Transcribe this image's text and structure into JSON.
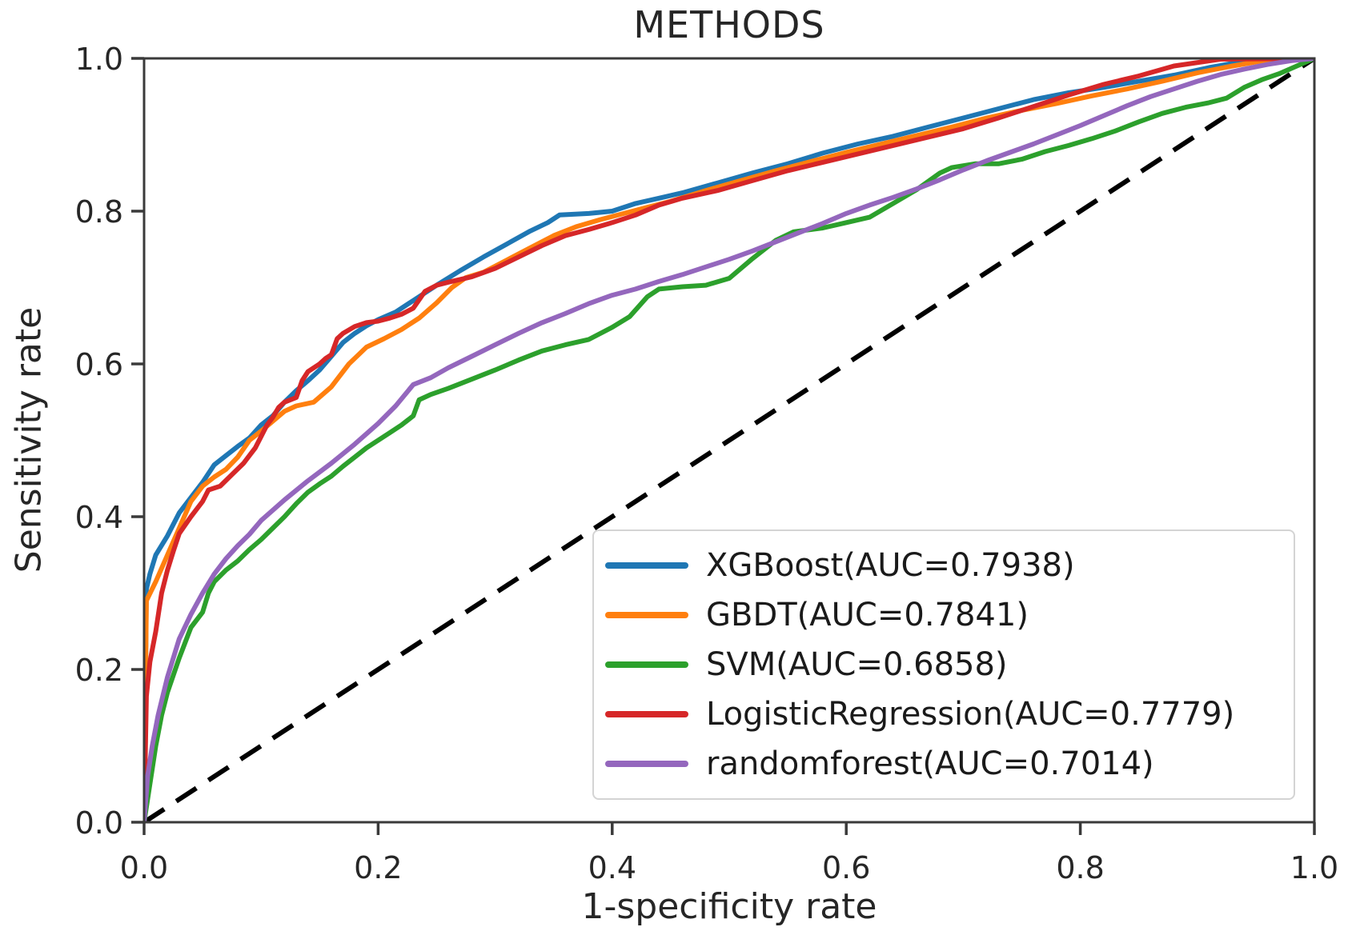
{
  "chart_data": {
    "type": "line",
    "subtype": "roc-curve",
    "title": "METHODS",
    "xlabel": "1-specificity rate",
    "ylabel": "Sensitivity rate",
    "xlim": [
      0.0,
      1.0
    ],
    "ylim": [
      0.0,
      1.0
    ],
    "xticks": [
      "0.0",
      "0.2",
      "0.4",
      "0.6",
      "0.8",
      "1.0"
    ],
    "yticks": [
      "0.0",
      "0.2",
      "0.4",
      "0.6",
      "0.8",
      "1.0"
    ],
    "grid": false,
    "legend_position": "lower right",
    "axis_color": "#3a3a3a",
    "text_color": "#262626",
    "reference_line": {
      "name": "chance-diagonal",
      "style": "dashed",
      "color": "#000000",
      "points": [
        [
          0,
          0
        ],
        [
          1,
          1
        ]
      ]
    },
    "series": [
      {
        "name": "XGBoost",
        "auc": 0.7938,
        "label": "XGBoost(AUC=0.7938)",
        "color": "#1f77b4",
        "points": [
          [
            0,
            0
          ],
          [
            0.002,
            0.305
          ],
          [
            0.005,
            0.325
          ],
          [
            0.01,
            0.35
          ],
          [
            0.02,
            0.375
          ],
          [
            0.03,
            0.405
          ],
          [
            0.04,
            0.425
          ],
          [
            0.05,
            0.445
          ],
          [
            0.06,
            0.468
          ],
          [
            0.07,
            0.48
          ],
          [
            0.08,
            0.492
          ],
          [
            0.09,
            0.503
          ],
          [
            0.1,
            0.52
          ],
          [
            0.11,
            0.532
          ],
          [
            0.12,
            0.55
          ],
          [
            0.13,
            0.565
          ],
          [
            0.14,
            0.578
          ],
          [
            0.15,
            0.592
          ],
          [
            0.16,
            0.61
          ],
          [
            0.17,
            0.628
          ],
          [
            0.18,
            0.64
          ],
          [
            0.19,
            0.65
          ],
          [
            0.2,
            0.658
          ],
          [
            0.215,
            0.668
          ],
          [
            0.23,
            0.683
          ],
          [
            0.25,
            0.703
          ],
          [
            0.27,
            0.722
          ],
          [
            0.29,
            0.74
          ],
          [
            0.31,
            0.757
          ],
          [
            0.33,
            0.774
          ],
          [
            0.345,
            0.785
          ],
          [
            0.355,
            0.795
          ],
          [
            0.38,
            0.797
          ],
          [
            0.4,
            0.8
          ],
          [
            0.42,
            0.81
          ],
          [
            0.44,
            0.817
          ],
          [
            0.46,
            0.824
          ],
          [
            0.49,
            0.837
          ],
          [
            0.52,
            0.85
          ],
          [
            0.55,
            0.862
          ],
          [
            0.58,
            0.876
          ],
          [
            0.61,
            0.888
          ],
          [
            0.64,
            0.898
          ],
          [
            0.67,
            0.91
          ],
          [
            0.7,
            0.922
          ],
          [
            0.73,
            0.934
          ],
          [
            0.76,
            0.946
          ],
          [
            0.79,
            0.955
          ],
          [
            0.82,
            0.962
          ],
          [
            0.85,
            0.97
          ],
          [
            0.88,
            0.978
          ],
          [
            0.91,
            0.988
          ],
          [
            0.95,
            0.999
          ],
          [
            1,
            1
          ]
        ]
      },
      {
        "name": "GBDT",
        "auc": 0.7841,
        "label": "GBDT(AUC=0.7841)",
        "color": "#ff7f0e",
        "points": [
          [
            0,
            0
          ],
          [
            0.002,
            0.29
          ],
          [
            0.01,
            0.315
          ],
          [
            0.02,
            0.35
          ],
          [
            0.03,
            0.385
          ],
          [
            0.04,
            0.42
          ],
          [
            0.05,
            0.44
          ],
          [
            0.06,
            0.452
          ],
          [
            0.07,
            0.462
          ],
          [
            0.08,
            0.478
          ],
          [
            0.09,
            0.5
          ],
          [
            0.1,
            0.512
          ],
          [
            0.11,
            0.525
          ],
          [
            0.12,
            0.538
          ],
          [
            0.13,
            0.545
          ],
          [
            0.145,
            0.55
          ],
          [
            0.16,
            0.57
          ],
          [
            0.175,
            0.6
          ],
          [
            0.19,
            0.622
          ],
          [
            0.205,
            0.633
          ],
          [
            0.22,
            0.645
          ],
          [
            0.235,
            0.66
          ],
          [
            0.25,
            0.68
          ],
          [
            0.263,
            0.7
          ],
          [
            0.275,
            0.713
          ],
          [
            0.29,
            0.72
          ],
          [
            0.31,
            0.736
          ],
          [
            0.33,
            0.752
          ],
          [
            0.35,
            0.768
          ],
          [
            0.37,
            0.78
          ],
          [
            0.39,
            0.789
          ],
          [
            0.41,
            0.797
          ],
          [
            0.43,
            0.805
          ],
          [
            0.45,
            0.813
          ],
          [
            0.48,
            0.827
          ],
          [
            0.51,
            0.84
          ],
          [
            0.54,
            0.853
          ],
          [
            0.57,
            0.865
          ],
          [
            0.6,
            0.877
          ],
          [
            0.63,
            0.888
          ],
          [
            0.66,
            0.899
          ],
          [
            0.69,
            0.91
          ],
          [
            0.72,
            0.922
          ],
          [
            0.75,
            0.932
          ],
          [
            0.78,
            0.941
          ],
          [
            0.81,
            0.951
          ],
          [
            0.84,
            0.96
          ],
          [
            0.87,
            0.97
          ],
          [
            0.9,
            0.981
          ],
          [
            0.93,
            0.99
          ],
          [
            0.96,
            0.998
          ],
          [
            1,
            1
          ]
        ]
      },
      {
        "name": "SVM",
        "auc": 0.6858,
        "label": "SVM(AUC=0.6858)",
        "color": "#2ca02c",
        "points": [
          [
            0,
            0
          ],
          [
            0.005,
            0.05
          ],
          [
            0.01,
            0.1
          ],
          [
            0.015,
            0.14
          ],
          [
            0.02,
            0.17
          ],
          [
            0.03,
            0.215
          ],
          [
            0.04,
            0.255
          ],
          [
            0.05,
            0.275
          ],
          [
            0.055,
            0.3
          ],
          [
            0.06,
            0.315
          ],
          [
            0.07,
            0.33
          ],
          [
            0.08,
            0.342
          ],
          [
            0.09,
            0.357
          ],
          [
            0.1,
            0.37
          ],
          [
            0.11,
            0.385
          ],
          [
            0.12,
            0.4
          ],
          [
            0.13,
            0.417
          ],
          [
            0.14,
            0.432
          ],
          [
            0.15,
            0.443
          ],
          [
            0.16,
            0.453
          ],
          [
            0.17,
            0.466
          ],
          [
            0.18,
            0.478
          ],
          [
            0.19,
            0.49
          ],
          [
            0.2,
            0.5
          ],
          [
            0.21,
            0.51
          ],
          [
            0.22,
            0.52
          ],
          [
            0.23,
            0.532
          ],
          [
            0.235,
            0.553
          ],
          [
            0.245,
            0.56
          ],
          [
            0.26,
            0.568
          ],
          [
            0.28,
            0.58
          ],
          [
            0.3,
            0.592
          ],
          [
            0.32,
            0.605
          ],
          [
            0.34,
            0.617
          ],
          [
            0.36,
            0.625
          ],
          [
            0.38,
            0.632
          ],
          [
            0.4,
            0.648
          ],
          [
            0.415,
            0.662
          ],
          [
            0.43,
            0.688
          ],
          [
            0.44,
            0.698
          ],
          [
            0.46,
            0.701
          ],
          [
            0.48,
            0.703
          ],
          [
            0.5,
            0.712
          ],
          [
            0.52,
            0.738
          ],
          [
            0.54,
            0.762
          ],
          [
            0.555,
            0.773
          ],
          [
            0.58,
            0.778
          ],
          [
            0.6,
            0.785
          ],
          [
            0.62,
            0.792
          ],
          [
            0.64,
            0.81
          ],
          [
            0.66,
            0.828
          ],
          [
            0.68,
            0.85
          ],
          [
            0.69,
            0.857
          ],
          [
            0.71,
            0.862
          ],
          [
            0.73,
            0.862
          ],
          [
            0.75,
            0.868
          ],
          [
            0.77,
            0.878
          ],
          [
            0.79,
            0.886
          ],
          [
            0.81,
            0.895
          ],
          [
            0.83,
            0.905
          ],
          [
            0.85,
            0.917
          ],
          [
            0.87,
            0.928
          ],
          [
            0.89,
            0.936
          ],
          [
            0.91,
            0.942
          ],
          [
            0.925,
            0.948
          ],
          [
            0.94,
            0.962
          ],
          [
            0.955,
            0.972
          ],
          [
            0.97,
            0.98
          ],
          [
            0.985,
            0.99
          ],
          [
            1,
            1
          ]
        ]
      },
      {
        "name": "LogisticRegression",
        "auc": 0.7779,
        "label": "LogisticRegression(AUC=0.7779)",
        "color": "#d62728",
        "points": [
          [
            0,
            0
          ],
          [
            0.002,
            0.165
          ],
          [
            0.005,
            0.21
          ],
          [
            0.01,
            0.25
          ],
          [
            0.015,
            0.3
          ],
          [
            0.02,
            0.33
          ],
          [
            0.025,
            0.355
          ],
          [
            0.03,
            0.378
          ],
          [
            0.04,
            0.4
          ],
          [
            0.05,
            0.42
          ],
          [
            0.055,
            0.435
          ],
          [
            0.065,
            0.44
          ],
          [
            0.075,
            0.455
          ],
          [
            0.085,
            0.47
          ],
          [
            0.09,
            0.48
          ],
          [
            0.095,
            0.49
          ],
          [
            0.1,
            0.505
          ],
          [
            0.105,
            0.52
          ],
          [
            0.11,
            0.53
          ],
          [
            0.115,
            0.543
          ],
          [
            0.12,
            0.55
          ],
          [
            0.13,
            0.556
          ],
          [
            0.135,
            0.578
          ],
          [
            0.14,
            0.59
          ],
          [
            0.15,
            0.6
          ],
          [
            0.155,
            0.607
          ],
          [
            0.16,
            0.612
          ],
          [
            0.165,
            0.633
          ],
          [
            0.17,
            0.64
          ],
          [
            0.18,
            0.649
          ],
          [
            0.19,
            0.654
          ],
          [
            0.2,
            0.656
          ],
          [
            0.21,
            0.66
          ],
          [
            0.22,
            0.665
          ],
          [
            0.23,
            0.673
          ],
          [
            0.24,
            0.695
          ],
          [
            0.25,
            0.703
          ],
          [
            0.26,
            0.707
          ],
          [
            0.28,
            0.714
          ],
          [
            0.3,
            0.725
          ],
          [
            0.32,
            0.74
          ],
          [
            0.34,
            0.755
          ],
          [
            0.36,
            0.768
          ],
          [
            0.38,
            0.776
          ],
          [
            0.4,
            0.785
          ],
          [
            0.42,
            0.795
          ],
          [
            0.44,
            0.808
          ],
          [
            0.46,
            0.817
          ],
          [
            0.49,
            0.827
          ],
          [
            0.52,
            0.84
          ],
          [
            0.55,
            0.853
          ],
          [
            0.58,
            0.864
          ],
          [
            0.61,
            0.875
          ],
          [
            0.64,
            0.886
          ],
          [
            0.67,
            0.897
          ],
          [
            0.7,
            0.908
          ],
          [
            0.73,
            0.922
          ],
          [
            0.76,
            0.937
          ],
          [
            0.79,
            0.952
          ],
          [
            0.82,
            0.966
          ],
          [
            0.85,
            0.977
          ],
          [
            0.88,
            0.99
          ],
          [
            0.92,
            0.999
          ],
          [
            1,
            1
          ]
        ]
      },
      {
        "name": "randomforest",
        "auc": 0.7014,
        "label": "randomforest(AUC=0.7014)",
        "color": "#9467bd",
        "points": [
          [
            0,
            0
          ],
          [
            0.003,
            0.06
          ],
          [
            0.007,
            0.1
          ],
          [
            0.012,
            0.14
          ],
          [
            0.02,
            0.19
          ],
          [
            0.03,
            0.24
          ],
          [
            0.04,
            0.272
          ],
          [
            0.05,
            0.3
          ],
          [
            0.06,
            0.325
          ],
          [
            0.07,
            0.345
          ],
          [
            0.08,
            0.362
          ],
          [
            0.09,
            0.377
          ],
          [
            0.1,
            0.395
          ],
          [
            0.12,
            0.422
          ],
          [
            0.14,
            0.447
          ],
          [
            0.16,
            0.47
          ],
          [
            0.18,
            0.495
          ],
          [
            0.2,
            0.522
          ],
          [
            0.215,
            0.545
          ],
          [
            0.23,
            0.573
          ],
          [
            0.245,
            0.582
          ],
          [
            0.26,
            0.595
          ],
          [
            0.28,
            0.61
          ],
          [
            0.3,
            0.625
          ],
          [
            0.32,
            0.64
          ],
          [
            0.34,
            0.654
          ],
          [
            0.36,
            0.666
          ],
          [
            0.38,
            0.679
          ],
          [
            0.4,
            0.69
          ],
          [
            0.42,
            0.698
          ],
          [
            0.44,
            0.708
          ],
          [
            0.46,
            0.717
          ],
          [
            0.48,
            0.727
          ],
          [
            0.5,
            0.737
          ],
          [
            0.52,
            0.748
          ],
          [
            0.54,
            0.76
          ],
          [
            0.56,
            0.772
          ],
          [
            0.58,
            0.784
          ],
          [
            0.6,
            0.797
          ],
          [
            0.62,
            0.808
          ],
          [
            0.64,
            0.818
          ],
          [
            0.66,
            0.829
          ],
          [
            0.68,
            0.841
          ],
          [
            0.7,
            0.854
          ],
          [
            0.72,
            0.866
          ],
          [
            0.74,
            0.877
          ],
          [
            0.76,
            0.888
          ],
          [
            0.78,
            0.9
          ],
          [
            0.8,
            0.912
          ],
          [
            0.82,
            0.925
          ],
          [
            0.84,
            0.938
          ],
          [
            0.86,
            0.95
          ],
          [
            0.88,
            0.96
          ],
          [
            0.9,
            0.97
          ],
          [
            0.92,
            0.979
          ],
          [
            0.94,
            0.986
          ],
          [
            0.96,
            0.992
          ],
          [
            0.98,
            0.997
          ],
          [
            1,
            1
          ]
        ]
      }
    ]
  }
}
